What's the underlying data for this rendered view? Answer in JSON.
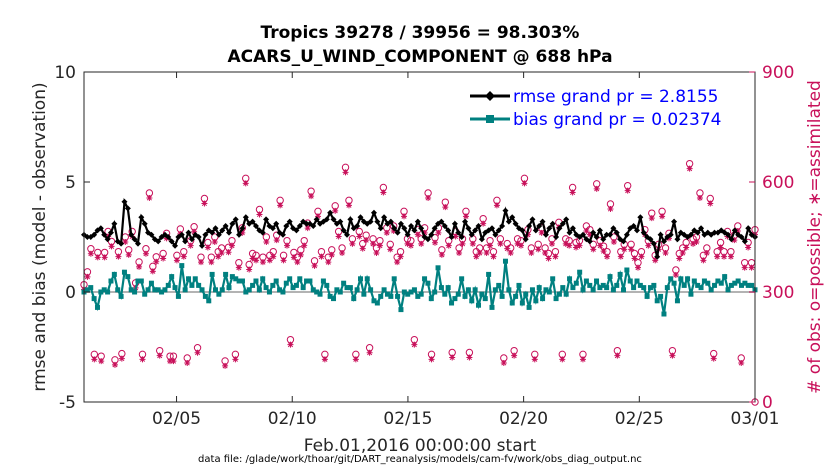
{
  "chart_data": {
    "type": "line",
    "title_line1": "Tropics 39278 / 39956 = 98.303%",
    "title_line2": "ACARS_U_WIND_COMPONENT @ 688 hPa",
    "xlabel": "Feb.01,2016 00:00:00 start",
    "ylabel_left": "rmse and bias (model - observation)",
    "ylabel_right": "# of obs: o=possible; ∗=assimilated",
    "footer": "data file: /glade/work/thoar/git/DART_reanalysis/models/cam-fv/work/obs_diag_output.nc",
    "x_range_days": [
      1,
      30
    ],
    "ylim_left": [
      -5,
      10
    ],
    "ylim_right": [
      0,
      900
    ],
    "x_ticks": [
      {
        "day": 5,
        "label": "02/05"
      },
      {
        "day": 10,
        "label": "02/10"
      },
      {
        "day": 15,
        "label": "02/15"
      },
      {
        "day": 20,
        "label": "02/20"
      },
      {
        "day": 25,
        "label": "02/25"
      },
      {
        "day": 30,
        "label": "03/01"
      }
    ],
    "y_ticks_left": [
      "-5",
      "0",
      "5",
      "10"
    ],
    "y_ticks_right": [
      "0",
      "300",
      "600",
      "900"
    ],
    "legend": {
      "rmse_label": "rmse grand pr = 2.8155",
      "bias_label": "bias grand pr = 0.02374"
    },
    "colors": {
      "rmse": "#000000",
      "bias": "#008080",
      "obs": "#c8105a",
      "zero_line": "#b3b3b3"
    },
    "series": [
      {
        "name": "rmse",
        "values": [
          2.6,
          2.5,
          2.5,
          2.6,
          2.8,
          2.9,
          2.6,
          2.4,
          2.7,
          3.1,
          2.3,
          2.2,
          4.1,
          3.8,
          2.6,
          2.4,
          2.2,
          3.4,
          3.1,
          2.7,
          2.6,
          2.4,
          2.3,
          2.5,
          2.6,
          2.5,
          2.3,
          2.1,
          2.5,
          2.6,
          2.3,
          2.7,
          2.4,
          2.6,
          2.5,
          2.1,
          2.6,
          2.8,
          2.7,
          2.9,
          2.6,
          2.8,
          3.0,
          2.7,
          3.1,
          3.3,
          2.6,
          2.9,
          3.4,
          3.1,
          3.2,
          3.0,
          2.8,
          2.7,
          3.3,
          3.0,
          2.9,
          3.1,
          2.7,
          2.6,
          3.0,
          3.2,
          2.9,
          2.8,
          3.0,
          3.2,
          3.1,
          3.1,
          3.0,
          3.3,
          3.1,
          3.2,
          3.3,
          3.6,
          3.3,
          3.1,
          3.2,
          2.8,
          2.6,
          3.3,
          2.9,
          3.0,
          3.4,
          3.2,
          3.1,
          3.2,
          3.6,
          3.2,
          2.9,
          3.4,
          3.1,
          3.2,
          2.9,
          2.7,
          3.1,
          2.9,
          2.6,
          3.0,
          2.8,
          3.2,
          2.9,
          2.5,
          2.4,
          2.6,
          2.9,
          3.1,
          3.2,
          3.0,
          2.8,
          2.5,
          3.1,
          2.7,
          2.5,
          3.2,
          2.9,
          2.6,
          2.8,
          3.0,
          2.4,
          2.7,
          2.8,
          2.9,
          2.6,
          2.8,
          3.0,
          3.7,
          3.2,
          3.4,
          3.1,
          2.9,
          2.8,
          2.4,
          3.0,
          3.3,
          2.8,
          3.0,
          3.2,
          2.6,
          2.9,
          3.1,
          2.5,
          2.9,
          3.1,
          3.3,
          2.7,
          2.9,
          2.6,
          2.5,
          2.6,
          2.4,
          2.3,
          2.7,
          2.5,
          2.8,
          2.4,
          2.6,
          2.6,
          2.9,
          2.7,
          2.4,
          2.3,
          2.6,
          2.9,
          3.0,
          2.8,
          3.4,
          2.7,
          2.5,
          2.4,
          2.2,
          1.6,
          2.6,
          2.3,
          2.5,
          2.6,
          3.2,
          2.4,
          2.7,
          2.6,
          2.5,
          2.6,
          2.8,
          2.7,
          2.9,
          2.6,
          2.7,
          2.6,
          2.7,
          2.7,
          2.8,
          2.7,
          2.6,
          2.4,
          2.8,
          2.6,
          2.5,
          2.3,
          2.9,
          2.6,
          2.5
        ]
      },
      {
        "name": "bias",
        "values": [
          0.0,
          0.1,
          0.2,
          -0.3,
          -0.7,
          0.0,
          0.1,
          0.0,
          0.5,
          0.8,
          0.1,
          -0.2,
          0.9,
          0.7,
          0.1,
          0.0,
          0.5,
          0.5,
          -0.1,
          0.1,
          0.4,
          0.1,
          0.1,
          0.0,
          0.1,
          0.3,
          0.7,
          0.2,
          -0.2,
          1.2,
          0.1,
          0.6,
          0.3,
          0.6,
          0.3,
          0.1,
          -0.2,
          -0.4,
          0.8,
          0.1,
          -0.1,
          0.1,
          0.8,
          0.2,
          0.7,
          0.6,
          0.5,
          0.5,
          0.0,
          0.1,
          0.3,
          0.5,
          0.1,
          0.6,
          0.2,
          0.0,
          0.3,
          0.5,
          0.1,
          0.0,
          0.4,
          0.6,
          0.2,
          0.3,
          0.6,
          0.2,
          0.5,
          0.5,
          0.1,
          0.0,
          -0.1,
          0.5,
          0.3,
          -0.2,
          -0.3,
          0.1,
          0.0,
          0.4,
          0.2,
          0.2,
          -0.3,
          0.1,
          0.6,
          -0.1,
          0.6,
          0.1,
          -0.4,
          -0.5,
          -0.2,
          0.1,
          -0.1,
          -0.2,
          0.6,
          -0.2,
          -0.8,
          0.0,
          -0.1,
          0.0,
          0.1,
          -0.2,
          -0.1,
          0.6,
          0.4,
          -0.3,
          0.0,
          1.1,
          0.2,
          -0.1,
          0.2,
          -0.5,
          -0.3,
          -0.1,
          0.6,
          -0.2,
          0.1,
          -0.4,
          0.1,
          -0.6,
          -0.1,
          -0.3,
          0.8,
          -0.7,
          0.1,
          0.3,
          -0.2,
          1.4,
          0.1,
          -0.5,
          -0.2,
          0.3,
          -0.5,
          -0.1,
          -0.7,
          0.1,
          -0.4,
          0.2,
          -0.3,
          0.1,
          0.0,
          0.6,
          -0.3,
          -0.1,
          0.2,
          -0.1,
          0.6,
          0.2,
          0.4,
          0.9,
          0.1,
          0.5,
          0.3,
          0.1,
          0.5,
          0.2,
          0.3,
          0.2,
          0.7,
          0.1,
          0.3,
          0.8,
          0.1,
          1.0,
          0.5,
          0.2,
          0.5,
          0.3,
          0.2,
          -0.2,
          0.2,
          0.3,
          -0.4,
          -0.2,
          -1.0,
          0.2,
          0.6,
          0.4,
          -0.4,
          0.6,
          0.3,
          0.6,
          -0.1,
          0.5,
          0.3,
          0.2,
          0.5,
          0.4,
          0.1,
          0.3,
          0.5,
          0.4,
          0.7,
          0.1,
          0.3,
          0.4,
          0.5,
          0.3,
          0.4,
          0.3,
          0.3,
          0.1
        ]
      },
      {
        "name": "obs_possible",
        "values": [
          320,
          355,
          418,
          130,
          408,
          125,
          408,
          465,
          438,
          115,
          410,
          132,
          450,
          415,
          465,
          325,
          382,
          130,
          418,
          570,
          370,
          396,
          140,
          405,
          460,
          125,
          125,
          400,
          472,
          410,
          120,
          440,
          478,
          148,
          395,
          555,
          435,
          395,
          450,
          410,
          420,
          112,
          422,
          440,
          130,
          380,
          475,
          610,
          375,
          405,
          400,
          525,
          395,
          450,
          400,
          410,
          455,
          550,
          400,
          440,
          170,
          408,
          395,
          415,
          440,
          488,
          575,
          385,
          520,
          410,
          130,
          395,
          415,
          535,
          465,
          420,
          640,
          550,
          445,
          130,
          465,
          432,
          455,
          148,
          445,
          420,
          440,
          585,
          475,
          430,
          480,
          395,
          410,
          520,
          445,
          440,
          170,
          470,
          445,
          475,
          570,
          130,
          448,
          475,
          415,
          545,
          440,
          135,
          465,
          420,
          445,
          520,
          135,
          445,
          410,
          420,
          500,
          420,
          440,
          410,
          550,
          445,
          120,
          432,
          420,
          140,
          445,
          440,
          610,
          470,
          420,
          130,
          430,
          475,
          420,
          405,
          445,
          410,
          490,
          130,
          445,
          440,
          585,
          435,
          440,
          130,
          480,
          470,
          430,
          595,
          440,
          425,
          410,
          540,
          450,
          140,
          410,
          430,
          590,
          430,
          405,
          380,
          410,
          470,
          440,
          515,
          400,
          430,
          520,
          420,
          460,
          140,
          360,
          405,
          420,
          435,
          650,
          445,
          450,
          570,
          400,
          420,
          555,
          132,
          410,
          435,
          410,
          465,
          410,
          455,
          480,
          120,
          380,
          435,
          380,
          470
        ]
      }
    ]
  }
}
